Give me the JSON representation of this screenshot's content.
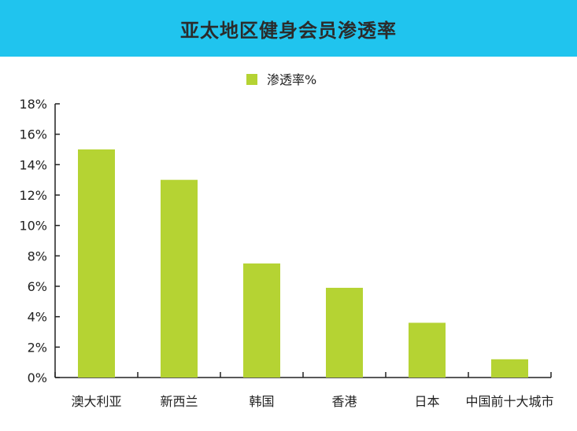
{
  "header": {
    "background_color": "#20c4ee"
  },
  "chart_data": {
    "type": "bar",
    "title": "亚太地区健身会员渗透率",
    "categories": [
      "澳大利亚",
      "新西兰",
      "韩国",
      "香港",
      "日本",
      "中国前十大城市"
    ],
    "series": [
      {
        "name": "渗透率%",
        "values": [
          15,
          13,
          7.5,
          5.9,
          3.6,
          1.2
        ],
        "color": "#b5d333"
      }
    ],
    "yticks": [
      "0%",
      "2%",
      "4%",
      "6%",
      "8%",
      "10%",
      "12%",
      "14%",
      "16%",
      "18%"
    ],
    "ylim": [
      0,
      18
    ],
    "xlabel": "",
    "ylabel": "",
    "grid": false,
    "legend_position": "top-center"
  }
}
